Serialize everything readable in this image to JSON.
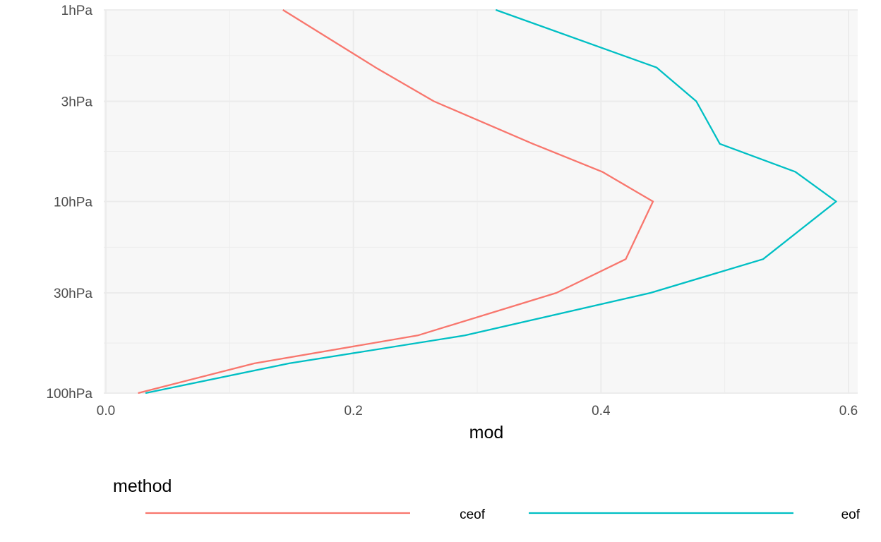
{
  "chart_data": {
    "type": "line",
    "xlabel": "mod",
    "ylabel": "",
    "xlim": [
      0.0,
      0.6
    ],
    "x_ticks": [
      0.0,
      0.2,
      0.4,
      0.6
    ],
    "x_tick_labels": [
      "0.0",
      "0.2",
      "0.4",
      "0.6"
    ],
    "y_scale": "log",
    "y_ticks": [
      1,
      3,
      10,
      30,
      100
    ],
    "y_tick_labels": [
      "1hPa",
      "3hPa",
      "10hPa",
      "30hPa",
      "100hPa"
    ],
    "ylim": [
      1,
      100
    ],
    "y_reversed": true,
    "grid": true,
    "legend": {
      "title": "method",
      "position": "bottom"
    },
    "series": [
      {
        "name": "ceof",
        "color": "#F8766D",
        "points": [
          {
            "x": 0.143,
            "y": 1
          },
          {
            "x": 0.218,
            "y": 2
          },
          {
            "x": 0.265,
            "y": 3
          },
          {
            "x": 0.345,
            "y": 5
          },
          {
            "x": 0.401,
            "y": 7
          },
          {
            "x": 0.442,
            "y": 10
          },
          {
            "x": 0.42,
            "y": 20
          },
          {
            "x": 0.364,
            "y": 30
          },
          {
            "x": 0.252,
            "y": 50
          },
          {
            "x": 0.12,
            "y": 70
          },
          {
            "x": 0.026,
            "y": 100
          }
        ]
      },
      {
        "name": "eof",
        "color": "#00BFC4",
        "points": [
          {
            "x": 0.315,
            "y": 1
          },
          {
            "x": 0.445,
            "y": 2
          },
          {
            "x": 0.477,
            "y": 3
          },
          {
            "x": 0.496,
            "y": 5
          },
          {
            "x": 0.557,
            "y": 7
          },
          {
            "x": 0.59,
            "y": 10
          },
          {
            "x": 0.531,
            "y": 20
          },
          {
            "x": 0.44,
            "y": 30
          },
          {
            "x": 0.29,
            "y": 50
          },
          {
            "x": 0.148,
            "y": 70
          },
          {
            "x": 0.032,
            "y": 100
          }
        ]
      }
    ]
  }
}
